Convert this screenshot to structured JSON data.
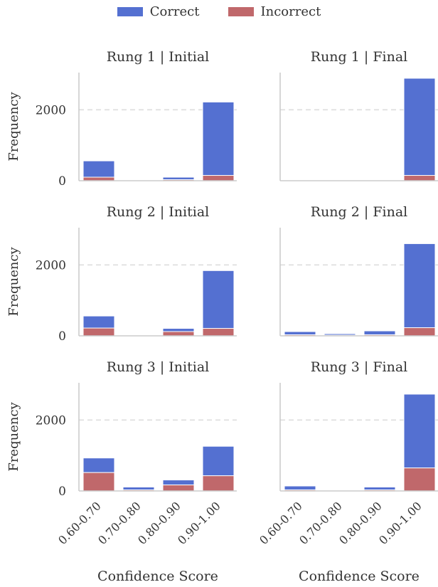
{
  "chart_data": {
    "type": "bar",
    "stacked": true,
    "legend": [
      {
        "name": "Correct",
        "color": "#5470d1"
      },
      {
        "name": "Incorrect",
        "color": "#c0686b"
      }
    ],
    "legend_position": "top-center",
    "categories": [
      "0.60-0.70",
      "0.70-0.80",
      "0.80-0.90",
      "0.90-1.00"
    ],
    "ylabel": "Frequency",
    "xlabel": "Confidence Score",
    "yticks": [
      0,
      2000
    ],
    "ylim": [
      0,
      3050
    ],
    "grid": "horizontal dashed at 2000",
    "panels": [
      {
        "title": "Rung 1 | Initial",
        "correct": [
          460,
          5,
          70,
          2070
        ],
        "incorrect": [
          100,
          5,
          30,
          150
        ]
      },
      {
        "title": "Rung 1 | Final",
        "correct": [
          15,
          15,
          10,
          2740
        ],
        "incorrect": [
          10,
          10,
          5,
          150
        ]
      },
      {
        "title": "Rung 2 | Initial",
        "correct": [
          340,
          5,
          90,
          1630
        ],
        "incorrect": [
          220,
          5,
          120,
          210
        ]
      },
      {
        "title": "Rung 2 | Final",
        "correct": [
          90,
          40,
          110,
          2370
        ],
        "incorrect": [
          30,
          20,
          30,
          230
        ]
      },
      {
        "title": "Rung 3 | Initial",
        "correct": [
          410,
          80,
          140,
          830
        ],
        "incorrect": [
          520,
          30,
          170,
          430
        ]
      },
      {
        "title": "Rung 3 | Final",
        "correct": [
          110,
          10,
          80,
          2080
        ],
        "incorrect": [
          30,
          5,
          30,
          650
        ]
      }
    ]
  }
}
